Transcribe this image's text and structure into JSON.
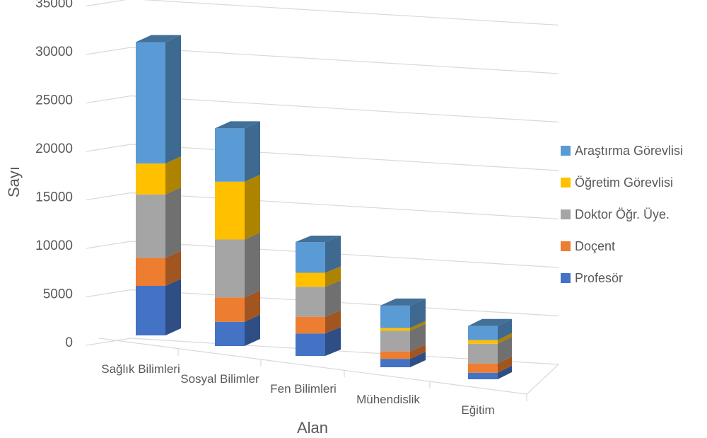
{
  "chart_data": {
    "type": "bar",
    "stacked": true,
    "style": "3d",
    "categories": [
      "Sağlık Bilimleri",
      "Sosyal Bilimler",
      "Fen Bilimleri",
      "Mühendislik",
      "Eğitim"
    ],
    "series": [
      {
        "name": "Profesör",
        "color": "#4472C4",
        "values": [
          5300,
          2600,
          2400,
          900,
          700
        ]
      },
      {
        "name": "Doçent",
        "color": "#ED7D31",
        "values": [
          3000,
          2600,
          1800,
          800,
          1000
        ]
      },
      {
        "name": "Doktor Öğr. Üye.",
        "color": "#A5A5A5",
        "values": [
          6800,
          6200,
          3200,
          2200,
          2100
        ]
      },
      {
        "name": "Öğretim Görevlisi",
        "color": "#FFC000",
        "values": [
          3300,
          6200,
          1500,
          300,
          400
        ]
      },
      {
        "name": "Araştırma Görevlisi",
        "color": "#5B9BD5",
        "values": [
          13000,
          5700,
          3300,
          2400,
          1500
        ]
      }
    ],
    "y_ticks": [
      "0",
      "5000",
      "10000",
      "15000",
      "20000",
      "25000",
      "30000",
      "35000"
    ],
    "ylim": [
      0,
      35000
    ],
    "xlabel": "Alan",
    "ylabel": "Sayı",
    "grid": true,
    "legend_position": "right"
  }
}
